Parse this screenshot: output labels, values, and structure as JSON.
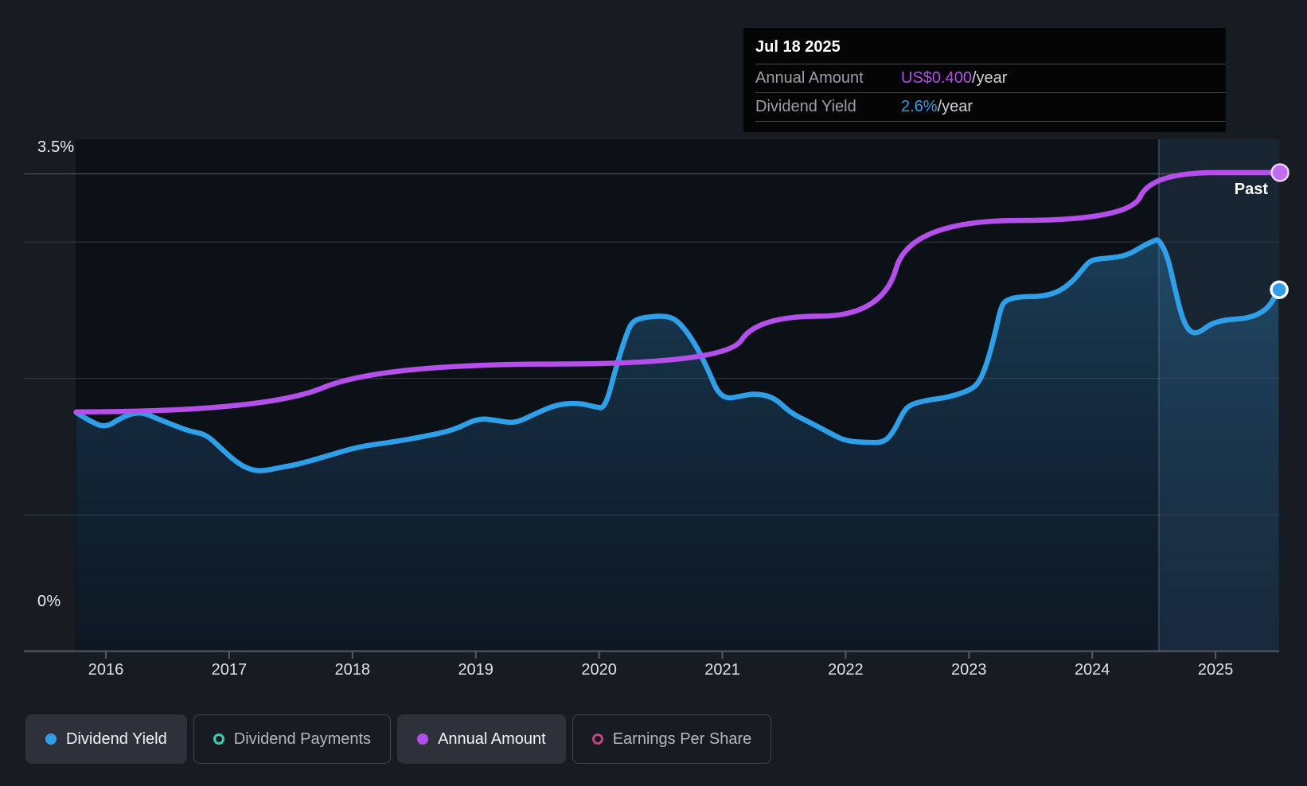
{
  "tooltip": {
    "date": "Jul 18 2025",
    "rows": [
      {
        "label": "Annual Amount",
        "value": "US$0.400",
        "suffix": "/year",
        "value_color": "#b44fe9"
      },
      {
        "label": "Dividend Yield",
        "value": "2.6%",
        "suffix": "/year",
        "value_color": "#2f9fe8"
      }
    ]
  },
  "chart": {
    "y_axis_top_label": "3.5%",
    "y_axis_zero_label": "0%",
    "x_ticks": [
      "2016",
      "2017",
      "2018",
      "2019",
      "2020",
      "2021",
      "2022",
      "2023",
      "2024",
      "2025"
    ],
    "past_label": "Past",
    "colors": {
      "page_bg": "#171c23",
      "plot_bg": "#0c1118",
      "past_bg": "#182634",
      "grid": "#2f3640",
      "grid_top": "#4a525b",
      "axis": "#555b63",
      "divider": "rgba(130,170,200,0.28)",
      "yield_line": "#2f9fe8",
      "amount_line": "#b44fe9",
      "area_top": "rgba(47,130,184,0.40)",
      "area_mid": "rgba(33,90,135,0.24)",
      "area_bottom": "rgba(26,64,100,0.15)"
    }
  },
  "legend": {
    "items": [
      {
        "label": "Dividend Yield",
        "color": "#2f9fe8",
        "marker": "filled",
        "active": true
      },
      {
        "label": "Dividend Payments",
        "color": "#3ec9b4",
        "marker": "ring",
        "active": false
      },
      {
        "label": "Annual Amount",
        "color": "#b14ee8",
        "marker": "filled",
        "active": true
      },
      {
        "label": "Earnings Per Share",
        "color": "#c74283",
        "marker": "ring",
        "active": false
      }
    ]
  },
  "chart_data": {
    "type": "line",
    "x_unit": "decimal_year",
    "x_range": [
      2015.76,
      2025.51
    ],
    "past_divider_x": 2024.54,
    "legend_position": "bottom",
    "grid": true,
    "y_left": {
      "label": "Dividend Yield",
      "unit": "%",
      "lim": [
        0,
        3.67
      ],
      "gridlines_pct": [
        1,
        2,
        3,
        3.5
      ],
      "top_tick_label": "3.5%",
      "zero_tick_label": "0%"
    },
    "y_right_hidden": {
      "label": "Annual Amount",
      "unit": "US$/year",
      "lim": [
        0,
        0.418
      ]
    },
    "series": [
      {
        "name": "Dividend Yield",
        "unit": "%",
        "color": "#2f9fe8",
        "style": "area-line",
        "visible": true,
        "end_value_pct": 2.6,
        "points": [
          [
            2015.76,
            1.75
          ],
          [
            2015.88,
            1.68
          ],
          [
            2016.0,
            1.64
          ],
          [
            2016.12,
            1.71
          ],
          [
            2016.27,
            1.76
          ],
          [
            2016.43,
            1.7
          ],
          [
            2016.57,
            1.65
          ],
          [
            2016.69,
            1.61
          ],
          [
            2016.81,
            1.59
          ],
          [
            2016.92,
            1.5
          ],
          [
            2017.05,
            1.39
          ],
          [
            2017.17,
            1.33
          ],
          [
            2017.28,
            1.32
          ],
          [
            2017.43,
            1.35
          ],
          [
            2017.56,
            1.37
          ],
          [
            2017.79,
            1.43
          ],
          [
            2018.05,
            1.5
          ],
          [
            2018.3,
            1.53
          ],
          [
            2018.56,
            1.57
          ],
          [
            2018.82,
            1.62
          ],
          [
            2019.02,
            1.71
          ],
          [
            2019.18,
            1.69
          ],
          [
            2019.32,
            1.67
          ],
          [
            2019.48,
            1.74
          ],
          [
            2019.66,
            1.81
          ],
          [
            2019.84,
            1.82
          ],
          [
            2019.97,
            1.79
          ],
          [
            2020.05,
            1.78
          ],
          [
            2020.14,
            2.09
          ],
          [
            2020.22,
            2.32
          ],
          [
            2020.27,
            2.42
          ],
          [
            2020.37,
            2.45
          ],
          [
            2020.55,
            2.46
          ],
          [
            2020.64,
            2.42
          ],
          [
            2020.73,
            2.32
          ],
          [
            2020.81,
            2.2
          ],
          [
            2020.89,
            2.05
          ],
          [
            2020.96,
            1.9
          ],
          [
            2021.04,
            1.85
          ],
          [
            2021.15,
            1.87
          ],
          [
            2021.27,
            1.89
          ],
          [
            2021.42,
            1.86
          ],
          [
            2021.55,
            1.75
          ],
          [
            2021.68,
            1.69
          ],
          [
            2021.79,
            1.64
          ],
          [
            2021.91,
            1.58
          ],
          [
            2022.01,
            1.54
          ],
          [
            2022.18,
            1.53
          ],
          [
            2022.31,
            1.53
          ],
          [
            2022.39,
            1.61
          ],
          [
            2022.47,
            1.76
          ],
          [
            2022.53,
            1.81
          ],
          [
            2022.66,
            1.84
          ],
          [
            2022.82,
            1.86
          ],
          [
            2022.97,
            1.9
          ],
          [
            2023.07,
            1.95
          ],
          [
            2023.14,
            2.09
          ],
          [
            2023.21,
            2.32
          ],
          [
            2023.26,
            2.53
          ],
          [
            2023.31,
            2.58
          ],
          [
            2023.43,
            2.6
          ],
          [
            2023.58,
            2.6
          ],
          [
            2023.72,
            2.63
          ],
          [
            2023.84,
            2.71
          ],
          [
            2023.93,
            2.81
          ],
          [
            2023.99,
            2.87
          ],
          [
            2024.11,
            2.88
          ],
          [
            2024.28,
            2.9
          ],
          [
            2024.41,
            2.97
          ],
          [
            2024.5,
            3.01
          ],
          [
            2024.54,
            3.02
          ],
          [
            2024.61,
            2.9
          ],
          [
            2024.67,
            2.66
          ],
          [
            2024.73,
            2.44
          ],
          [
            2024.79,
            2.34
          ],
          [
            2024.86,
            2.33
          ],
          [
            2024.96,
            2.4
          ],
          [
            2025.08,
            2.43
          ],
          [
            2025.25,
            2.44
          ],
          [
            2025.35,
            2.47
          ],
          [
            2025.44,
            2.53
          ],
          [
            2025.51,
            2.65
          ]
        ]
      },
      {
        "name": "Annual Amount",
        "unit": "US$/year",
        "color": "#b44fe9",
        "style": "line",
        "visible": true,
        "end_value_usd": 0.4,
        "points": [
          [
            2015.76,
            0.2
          ],
          [
            2017.28,
            0.2
          ],
          [
            2018.23,
            0.24
          ],
          [
            2021.03,
            0.24
          ],
          [
            2021.28,
            0.28
          ],
          [
            2022.3,
            0.28
          ],
          [
            2022.52,
            0.36
          ],
          [
            2024.3,
            0.36
          ],
          [
            2024.48,
            0.4
          ],
          [
            2025.51,
            0.4
          ]
        ]
      },
      {
        "name": "Dividend Payments",
        "color": "#3ec9b4",
        "visible": false,
        "points": []
      },
      {
        "name": "Earnings Per Share",
        "color": "#c74283",
        "visible": false,
        "points": []
      }
    ]
  }
}
